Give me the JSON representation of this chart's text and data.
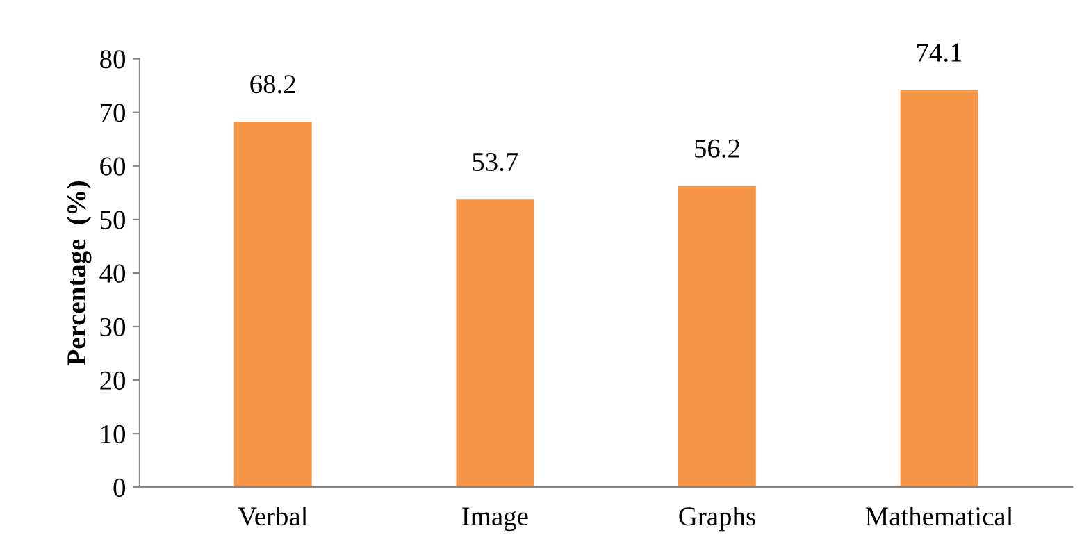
{
  "chart_data": {
    "type": "bar",
    "ylabel": "Percentage  (%)",
    "categories": [
      "Verbal",
      "Image",
      "Graphs",
      "Mathematical"
    ],
    "values": [
      68.2,
      53.7,
      56.2,
      74.1
    ],
    "color": "#f79646",
    "ylim": [
      0,
      80
    ],
    "yticks": [
      0,
      10,
      20,
      30,
      40,
      50,
      60,
      70,
      80
    ],
    "grid": false,
    "data_labels": true
  }
}
